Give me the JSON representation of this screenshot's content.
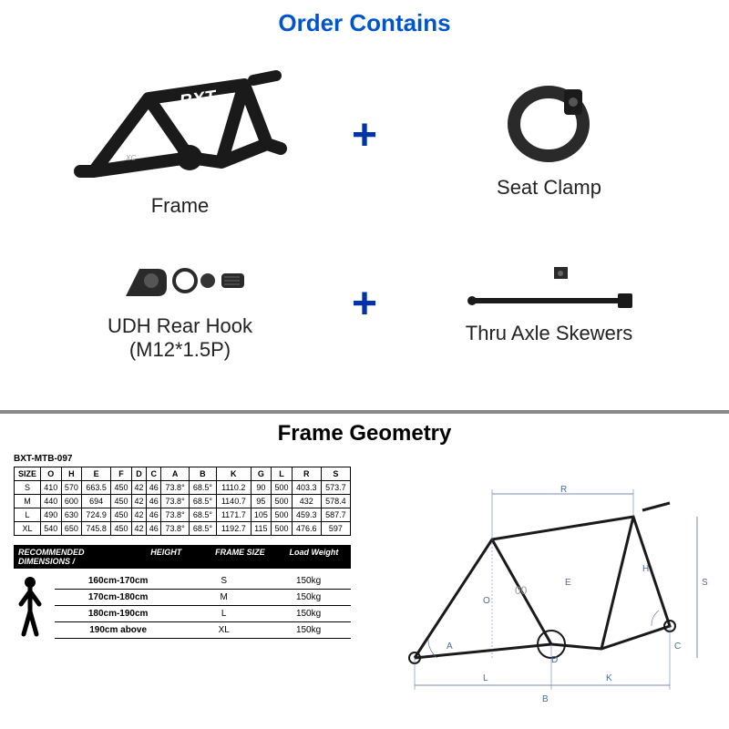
{
  "top": {
    "title": "Order Contains",
    "items": {
      "frame": "Frame",
      "seatClamp": "Seat Clamp",
      "udhHook": "UDH Rear Hook",
      "udhHookSub": "(M12*1.5P)",
      "thruAxle": "Thru Axle Skewers"
    }
  },
  "bottom": {
    "title": "Frame Geometry",
    "model": "BXT-MTB-097",
    "geoTable": {
      "headers": [
        "SIZE",
        "O",
        "H",
        "E",
        "F",
        "D",
        "C",
        "A",
        "B",
        "K",
        "G",
        "L",
        "R",
        "S"
      ],
      "rows": [
        [
          "S",
          "410",
          "570",
          "663.5",
          "450",
          "42",
          "46",
          "73.8°",
          "68.5°",
          "1110.2",
          "90",
          "500",
          "403.3",
          "573.7"
        ],
        [
          "M",
          "440",
          "600",
          "694",
          "450",
          "42",
          "46",
          "73.8°",
          "68.5°",
          "1140.7",
          "95",
          "500",
          "432",
          "578.4"
        ],
        [
          "L",
          "490",
          "630",
          "724.9",
          "450",
          "42",
          "46",
          "73.8°",
          "68.5°",
          "1171.7",
          "105",
          "500",
          "459.3",
          "587.7"
        ],
        [
          "XL",
          "540",
          "650",
          "745.8",
          "450",
          "42",
          "46",
          "73.8°",
          "68.5°",
          "1192.7",
          "115",
          "500",
          "476.6",
          "597"
        ]
      ]
    },
    "recHeader": {
      "dims": "RECOMMENDED DIMENSIONS",
      "height": "HEIGHT",
      "frameSize": "FRAME SIZE",
      "loadWeight": "Load Weight"
    },
    "recRows": [
      {
        "height": "160cm-170cm",
        "size": "S",
        "load": "150kg"
      },
      {
        "height": "170cm-180cm",
        "size": "M",
        "load": "150kg"
      },
      {
        "height": "180cm-190cm",
        "size": "L",
        "load": "150kg"
      },
      {
        "height": "190cm above",
        "size": "XL",
        "load": "150kg"
      }
    ]
  },
  "colors": {
    "titleBlue": "#0055cc",
    "plusBlue": "#0033aa",
    "black": "#000000",
    "gray": "#888888"
  }
}
